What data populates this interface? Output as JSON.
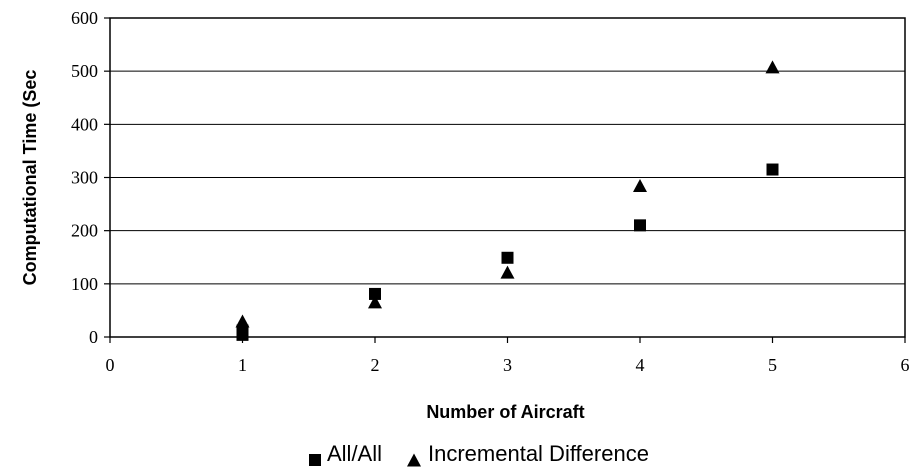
{
  "chart_data": {
    "type": "scatter",
    "xlabel": "Number of Aircraft",
    "ylabel": "Computational Time (Sec",
    "xlim": [
      0,
      6
    ],
    "ylim": [
      0,
      600
    ],
    "xticks": [
      0,
      1,
      2,
      3,
      4,
      5,
      6
    ],
    "yticks": [
      0,
      100,
      200,
      300,
      400,
      500,
      600
    ],
    "grid": "horizontal",
    "legend_position": "bottom",
    "series": [
      {
        "name": "All/All",
        "marker": "square",
        "color": "#000000",
        "x": [
          1,
          1,
          2,
          3,
          4,
          5
        ],
        "y": [
          4,
          12,
          81,
          149,
          210,
          315
        ]
      },
      {
        "name": "Incremental Difference",
        "marker": "triangle",
        "color": "#000000",
        "x": [
          1,
          2,
          3,
          4,
          5
        ],
        "y": [
          30,
          66,
          122,
          285,
          508
        ]
      }
    ]
  }
}
